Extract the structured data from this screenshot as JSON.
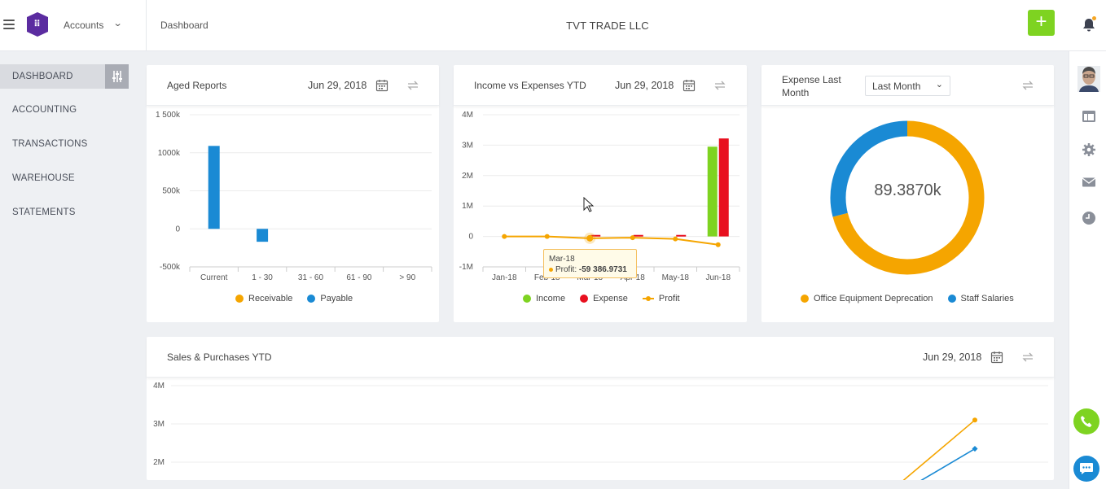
{
  "topbar": {
    "app_name": "Accounts",
    "breadcrumb": "Dashboard",
    "company": "TVT TRADE LLC",
    "add_label": "+"
  },
  "sidebar": {
    "items": [
      {
        "label": "DASHBOARD"
      },
      {
        "label": "ACCOUNTING"
      },
      {
        "label": "TRANSACTIONS"
      },
      {
        "label": "WAREHOUSE"
      },
      {
        "label": "STATEMENTS"
      }
    ]
  },
  "aged": {
    "title": "Aged Reports",
    "date": "Jun 29, 2018",
    "legend": [
      "Receivable",
      "Payable"
    ]
  },
  "income": {
    "title": "Income vs Expenses YTD",
    "date": "Jun 29, 2018",
    "legend": [
      "Income",
      "Expense",
      "Profit"
    ],
    "tooltip": {
      "month": "Mar-18",
      "label": "Profit:",
      "value": "-59 386.9731"
    }
  },
  "expense": {
    "title": "Expense Last Month",
    "period": "Last Month",
    "center_value": "89.3870k",
    "legend": [
      "Office Equipment Deprecation",
      "Staff Salaries"
    ]
  },
  "sales": {
    "title": "Sales & Purchases YTD",
    "date": "Jun 29, 2018"
  },
  "colors": {
    "receivable": "#f5a500",
    "payable": "#1a8ad4",
    "income": "#7ed321",
    "expense": "#e8101f",
    "profit": "#f5a500",
    "accent_green": "#7ed321"
  },
  "chart_data": [
    {
      "type": "bar",
      "title": "Aged Reports",
      "categories": [
        "Current",
        "1 - 30",
        "31 - 60",
        "61 - 90",
        "> 90"
      ],
      "series": [
        {
          "name": "Receivable",
          "values": [
            0,
            0,
            0,
            0,
            0
          ]
        },
        {
          "name": "Payable",
          "values": [
            1090000,
            -170000,
            0,
            0,
            0
          ]
        }
      ],
      "yticks": [
        "1 500k",
        "1000k",
        "500k",
        "0",
        "-500k"
      ],
      "ylim": [
        -500000,
        1500000
      ],
      "grid": true,
      "legend": "bottom"
    },
    {
      "type": "bar",
      "title": "Income vs Expenses YTD",
      "categories": [
        "Jan-18",
        "Feb-18",
        "Mar-18",
        "Apr-18",
        "May-18",
        "Jun-18"
      ],
      "xtick_labels": [
        "Jan-18",
        "Feb-18",
        "Mar-18",
        "Apr-18",
        "May-18",
        "Jun-18"
      ],
      "series": [
        {
          "name": "Income",
          "type": "bar",
          "values": [
            0,
            0,
            0,
            0,
            0,
            2950000
          ]
        },
        {
          "name": "Expense",
          "type": "bar",
          "values": [
            0,
            0,
            50000,
            50000,
            50000,
            3220000
          ]
        },
        {
          "name": "Profit",
          "type": "line",
          "values": [
            0,
            0,
            -59386.9731,
            -40000,
            -80000,
            -270000
          ]
        }
      ],
      "yticks": [
        "4M",
        "3M",
        "2M",
        "1M",
        "0",
        "-1M"
      ],
      "ylim": [
        -1000000,
        4000000
      ],
      "grid": true,
      "legend": "bottom"
    },
    {
      "type": "pie",
      "title": "Expense Last Month",
      "center_label": "89.3870k",
      "slices": [
        {
          "name": "Office Equipment Deprecation",
          "value": 0.71
        },
        {
          "name": "Staff Salaries",
          "value": 0.29
        }
      ],
      "legend": "bottom"
    },
    {
      "type": "line",
      "title": "Sales & Purchases YTD",
      "yticks": [
        "4M",
        "3M",
        "2M"
      ],
      "ylim": [
        2000000,
        4000000
      ],
      "series": [
        {
          "values": [
            3100000
          ]
        },
        {
          "values": [
            2350000
          ]
        }
      ]
    }
  ]
}
